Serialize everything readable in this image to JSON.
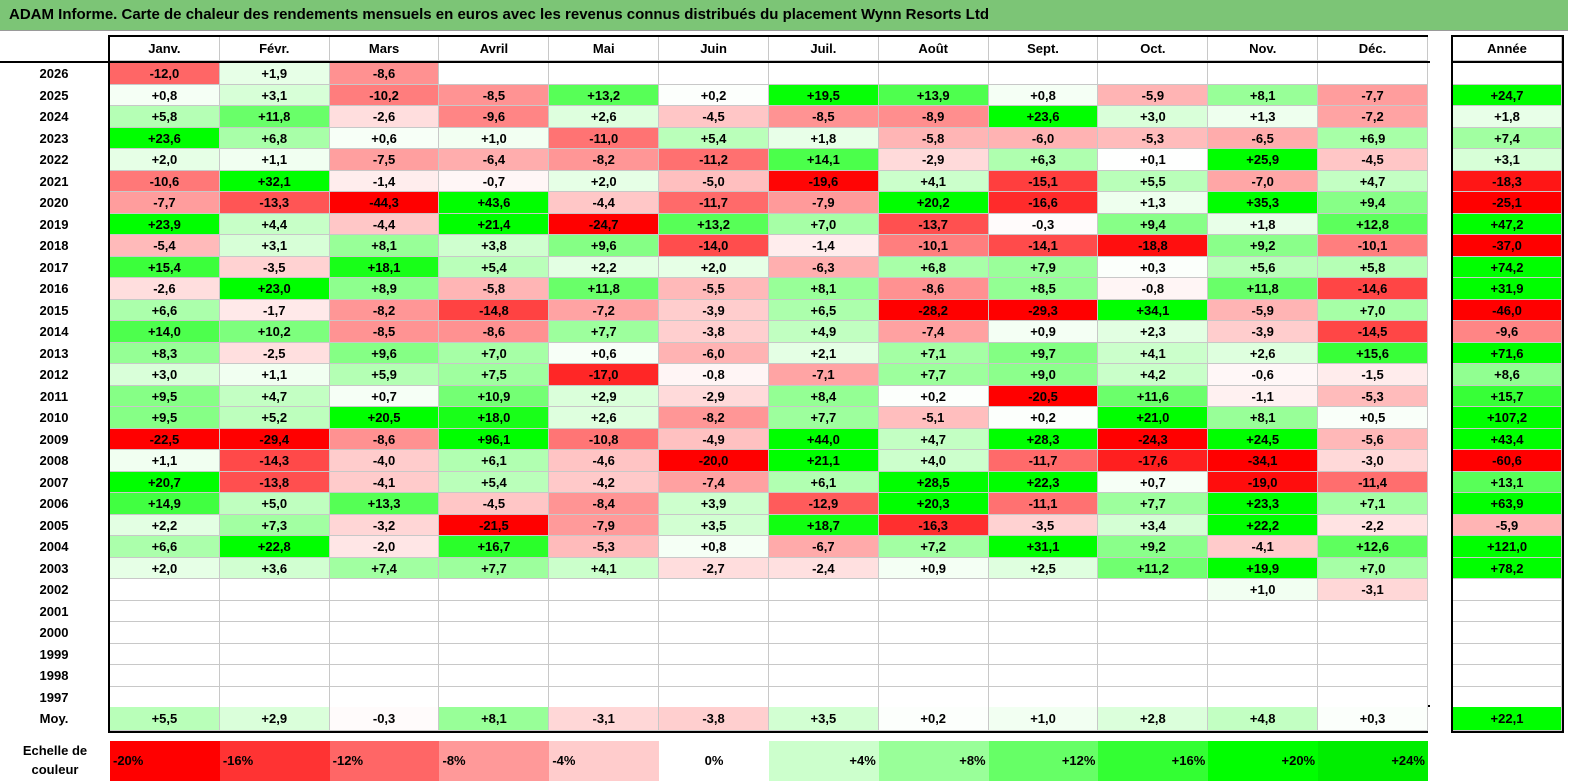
{
  "title": "ADAM Informe. Carte de chaleur des rendements mensuels en euros avec les revenus connus distribués du placement Wynn Resorts Ltd",
  "chart_data": {
    "type": "heatmap",
    "months": [
      "Janv.",
      "Févr.",
      "Mars",
      "Avril",
      "Mai",
      "Juin",
      "Juil.",
      "Août",
      "Sept.",
      "Oct.",
      "Nov.",
      "Déc."
    ],
    "year_header": "Année",
    "avg_label": "Moy.",
    "rows": [
      {
        "year": "2026",
        "m": [
          "-12,0",
          "+1,9",
          "-8,6",
          "",
          "",
          "",
          "",
          "",
          "",
          "",
          "",
          ""
        ],
        "y": ""
      },
      {
        "year": "2025",
        "m": [
          "+0,8",
          "+3,1",
          "-10,2",
          "-8,5",
          "+13,2",
          "+0,2",
          "+19,5",
          "+13,9",
          "+0,8",
          "-5,9",
          "+8,1",
          "-7,7"
        ],
        "y": "+24,7"
      },
      {
        "year": "2024",
        "m": [
          "+5,8",
          "+11,8",
          "-2,6",
          "-9,6",
          "+2,6",
          "-4,5",
          "-8,5",
          "-8,9",
          "+23,6",
          "+3,0",
          "+1,3",
          "-7,2"
        ],
        "y": "+1,8"
      },
      {
        "year": "2023",
        "m": [
          "+23,6",
          "+6,8",
          "+0,6",
          "+1,0",
          "-11,0",
          "+5,4",
          "+1,8",
          "-5,8",
          "-6,0",
          "-5,3",
          "-6,5",
          "+6,9"
        ],
        "y": "+7,4"
      },
      {
        "year": "2022",
        "m": [
          "+2,0",
          "+1,1",
          "-7,5",
          "-6,4",
          "-8,2",
          "-11,2",
          "+14,1",
          "-2,9",
          "+6,3",
          "+0,1",
          "+25,9",
          "-4,5"
        ],
        "y": "+3,1"
      },
      {
        "year": "2021",
        "m": [
          "-10,6",
          "+32,1",
          "-1,4",
          "-0,7",
          "+2,0",
          "-5,0",
          "-19,6",
          "+4,1",
          "-15,1",
          "+5,5",
          "-7,0",
          "+4,7"
        ],
        "y": "-18,3"
      },
      {
        "year": "2020",
        "m": [
          "-7,7",
          "-13,3",
          "-44,3",
          "+43,6",
          "-4,4",
          "-11,7",
          "-7,9",
          "+20,2",
          "-16,6",
          "+1,3",
          "+35,3",
          "+9,4"
        ],
        "y": "-25,1"
      },
      {
        "year": "2019",
        "m": [
          "+23,9",
          "+4,4",
          "-4,4",
          "+21,4",
          "-24,7",
          "+13,2",
          "+7,0",
          "-13,7",
          "-0,3",
          "+9,4",
          "+1,8",
          "+12,8"
        ],
        "y": "+47,2"
      },
      {
        "year": "2018",
        "m": [
          "-5,4",
          "+3,1",
          "+8,1",
          "+3,8",
          "+9,6",
          "-14,0",
          "-1,4",
          "-10,1",
          "-14,1",
          "-18,8",
          "+9,2",
          "-10,1"
        ],
        "y": "-37,0"
      },
      {
        "year": "2017",
        "m": [
          "+15,4",
          "-3,5",
          "+18,1",
          "+5,4",
          "+2,2",
          "+2,0",
          "-6,3",
          "+6,8",
          "+7,9",
          "+0,3",
          "+5,6",
          "+5,8"
        ],
        "y": "+74,2"
      },
      {
        "year": "2016",
        "m": [
          "-2,6",
          "+23,0",
          "+8,9",
          "-5,8",
          "+11,8",
          "-5,5",
          "+8,1",
          "-8,6",
          "+8,5",
          "-0,8",
          "+11,8",
          "-14,6"
        ],
        "y": "+31,9"
      },
      {
        "year": "2015",
        "m": [
          "+6,6",
          "-1,7",
          "-8,2",
          "-14,8",
          "-7,2",
          "-3,9",
          "+6,5",
          "-28,2",
          "-29,3",
          "+34,1",
          "-5,9",
          "+7,0"
        ],
        "y": "-46,0"
      },
      {
        "year": "2014",
        "m": [
          "+14,0",
          "+10,2",
          "-8,5",
          "-8,6",
          "+7,7",
          "-3,8",
          "+4,9",
          "-7,4",
          "+0,9",
          "+2,3",
          "-3,9",
          "-14,5"
        ],
        "y": "-9,6"
      },
      {
        "year": "2013",
        "m": [
          "+8,3",
          "-2,5",
          "+9,6",
          "+7,0",
          "+0,6",
          "-6,0",
          "+2,1",
          "+7,1",
          "+9,7",
          "+4,1",
          "+2,6",
          "+15,6"
        ],
        "y": "+71,6"
      },
      {
        "year": "2012",
        "m": [
          "+3,0",
          "+1,1",
          "+5,9",
          "+7,5",
          "-17,0",
          "-0,8",
          "-7,1",
          "+7,7",
          "+9,0",
          "+4,2",
          "-0,6",
          "-1,5"
        ],
        "y": "+8,6"
      },
      {
        "year": "2011",
        "m": [
          "+9,5",
          "+4,7",
          "+0,7",
          "+10,9",
          "+2,9",
          "-2,9",
          "+8,4",
          "+0,2",
          "-20,5",
          "+11,6",
          "-1,1",
          "-5,3"
        ],
        "y": "+15,7"
      },
      {
        "year": "2010",
        "m": [
          "+9,5",
          "+5,2",
          "+20,5",
          "+18,0",
          "+2,6",
          "-8,2",
          "+7,7",
          "-5,1",
          "+0,2",
          "+21,0",
          "+8,1",
          "+0,5"
        ],
        "y": "+107,2"
      },
      {
        "year": "2009",
        "m": [
          "-22,5",
          "-29,4",
          "-8,6",
          "+96,1",
          "-10,8",
          "-4,9",
          "+44,0",
          "+4,7",
          "+28,3",
          "-24,3",
          "+24,5",
          "-5,6"
        ],
        "y": "+43,4"
      },
      {
        "year": "2008",
        "m": [
          "+1,1",
          "-14,3",
          "-4,0",
          "+6,1",
          "-4,6",
          "-20,0",
          "+21,1",
          "+4,0",
          "-11,7",
          "-17,6",
          "-34,1",
          "-3,0"
        ],
        "y": "-60,6"
      },
      {
        "year": "2007",
        "m": [
          "+20,7",
          "-13,8",
          "-4,1",
          "+5,4",
          "-4,2",
          "-7,4",
          "+6,1",
          "+28,5",
          "+22,3",
          "+0,7",
          "-19,0",
          "-11,4"
        ],
        "y": "+13,1"
      },
      {
        "year": "2006",
        "m": [
          "+14,9",
          "+5,0",
          "+13,3",
          "-4,5",
          "-8,4",
          "+3,9",
          "-12,9",
          "+20,3",
          "-11,1",
          "+7,7",
          "+23,3",
          "+7,1"
        ],
        "y": "+63,9"
      },
      {
        "year": "2005",
        "m": [
          "+2,2",
          "+7,3",
          "-3,2",
          "-21,5",
          "-7,9",
          "+3,5",
          "+18,7",
          "-16,3",
          "-3,5",
          "+3,4",
          "+22,2",
          "-2,2"
        ],
        "y": "-5,9"
      },
      {
        "year": "2004",
        "m": [
          "+6,6",
          "+22,8",
          "-2,0",
          "+16,7",
          "-5,3",
          "+0,8",
          "-6,7",
          "+7,2",
          "+31,1",
          "+9,2",
          "-4,1",
          "+12,6"
        ],
        "y": "+121,0"
      },
      {
        "year": "2003",
        "m": [
          "+2,0",
          "+3,6",
          "+7,4",
          "+7,7",
          "+4,1",
          "-2,7",
          "-2,4",
          "+0,9",
          "+2,5",
          "+11,2",
          "+19,9",
          "+7,0"
        ],
        "y": "+78,2"
      },
      {
        "year": "2002",
        "m": [
          "",
          "",
          "",
          "",
          "",
          "",
          "",
          "",
          "",
          "",
          "+1,0",
          "-3,1"
        ],
        "y": ""
      },
      {
        "year": "2001",
        "m": [
          "",
          "",
          "",
          "",
          "",
          "",
          "",
          "",
          "",
          "",
          "",
          ""
        ],
        "y": ""
      },
      {
        "year": "2000",
        "m": [
          "",
          "",
          "",
          "",
          "",
          "",
          "",
          "",
          "",
          "",
          "",
          ""
        ],
        "y": ""
      },
      {
        "year": "1999",
        "m": [
          "",
          "",
          "",
          "",
          "",
          "",
          "",
          "",
          "",
          "",
          "",
          ""
        ],
        "y": ""
      },
      {
        "year": "1998",
        "m": [
          "",
          "",
          "",
          "",
          "",
          "",
          "",
          "",
          "",
          "",
          "",
          ""
        ],
        "y": ""
      },
      {
        "year": "1997",
        "m": [
          "",
          "",
          "",
          "",
          "",
          "",
          "",
          "",
          "",
          "",
          "",
          ""
        ],
        "y": ""
      }
    ],
    "average": {
      "m": [
        "+5,5",
        "+2,9",
        "-0,3",
        "+8,1",
        "-3,1",
        "-3,8",
        "+3,5",
        "+0,2",
        "+1,0",
        "+2,8",
        "+4,8",
        "+0,3"
      ],
      "y": "+22,1"
    },
    "scale_label": "Echelle de couleur",
    "scale": [
      {
        "label": "-20%",
        "v": -20,
        "color": "#ff0000"
      },
      {
        "label": "-16%",
        "v": -16,
        "color": "#ff3333"
      },
      {
        "label": "-12%",
        "v": -12,
        "color": "#ff6666"
      },
      {
        "label": "-8%",
        "v": -8,
        "color": "#ff9999"
      },
      {
        "label": "-4%",
        "v": -4,
        "color": "#ffcccc"
      },
      {
        "label": "0%",
        "v": 0,
        "color": "#ffffff"
      },
      {
        "label": "+4%",
        "v": 4,
        "color": "#ccffcc"
      },
      {
        "label": "+8%",
        "v": 8,
        "color": "#99ff99"
      },
      {
        "label": "+12%",
        "v": 12,
        "color": "#66ff66"
      },
      {
        "label": "+16%",
        "v": 16,
        "color": "#33ff33"
      },
      {
        "label": "+20%",
        "v": 20,
        "color": "#00ff00"
      },
      {
        "label": "+24%",
        "v": 24,
        "color": "#00ee00"
      }
    ]
  }
}
